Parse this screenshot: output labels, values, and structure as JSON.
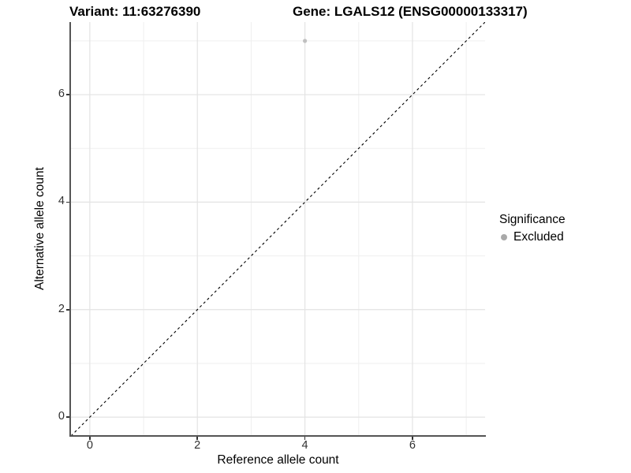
{
  "header": {
    "variant_title": "Variant: 11:63276390",
    "gene_title": "Gene: LGALS12 (ENSG00000133317)"
  },
  "chart_data": {
    "type": "scatter",
    "xlabel": "Reference allele count",
    "ylabel": "Alternative allele count",
    "xlim": [
      -0.35,
      7.35
    ],
    "ylim": [
      -0.35,
      7.35
    ],
    "major_ticks": [
      0,
      2,
      4,
      6
    ],
    "minor_gridlines": [
      1,
      3,
      5,
      7
    ],
    "grid": true,
    "series": [
      {
        "name": "Excluded",
        "points": [
          {
            "x": 4,
            "y": 7
          }
        ]
      }
    ],
    "reference_line": {
      "kind": "identity",
      "slope": 1,
      "intercept": 0,
      "style": "dashed",
      "color": "#000000"
    },
    "legend": {
      "title": "Significance",
      "position": "right",
      "items": [
        {
          "label": "Excluded",
          "color": "#a9a9a9"
        }
      ]
    },
    "colors": {
      "point": "#c0c0c0",
      "grid_major": "#e3e3e3",
      "grid_minor": "#efefef",
      "axis_line": "#555555",
      "tick_label": "#303030"
    }
  }
}
